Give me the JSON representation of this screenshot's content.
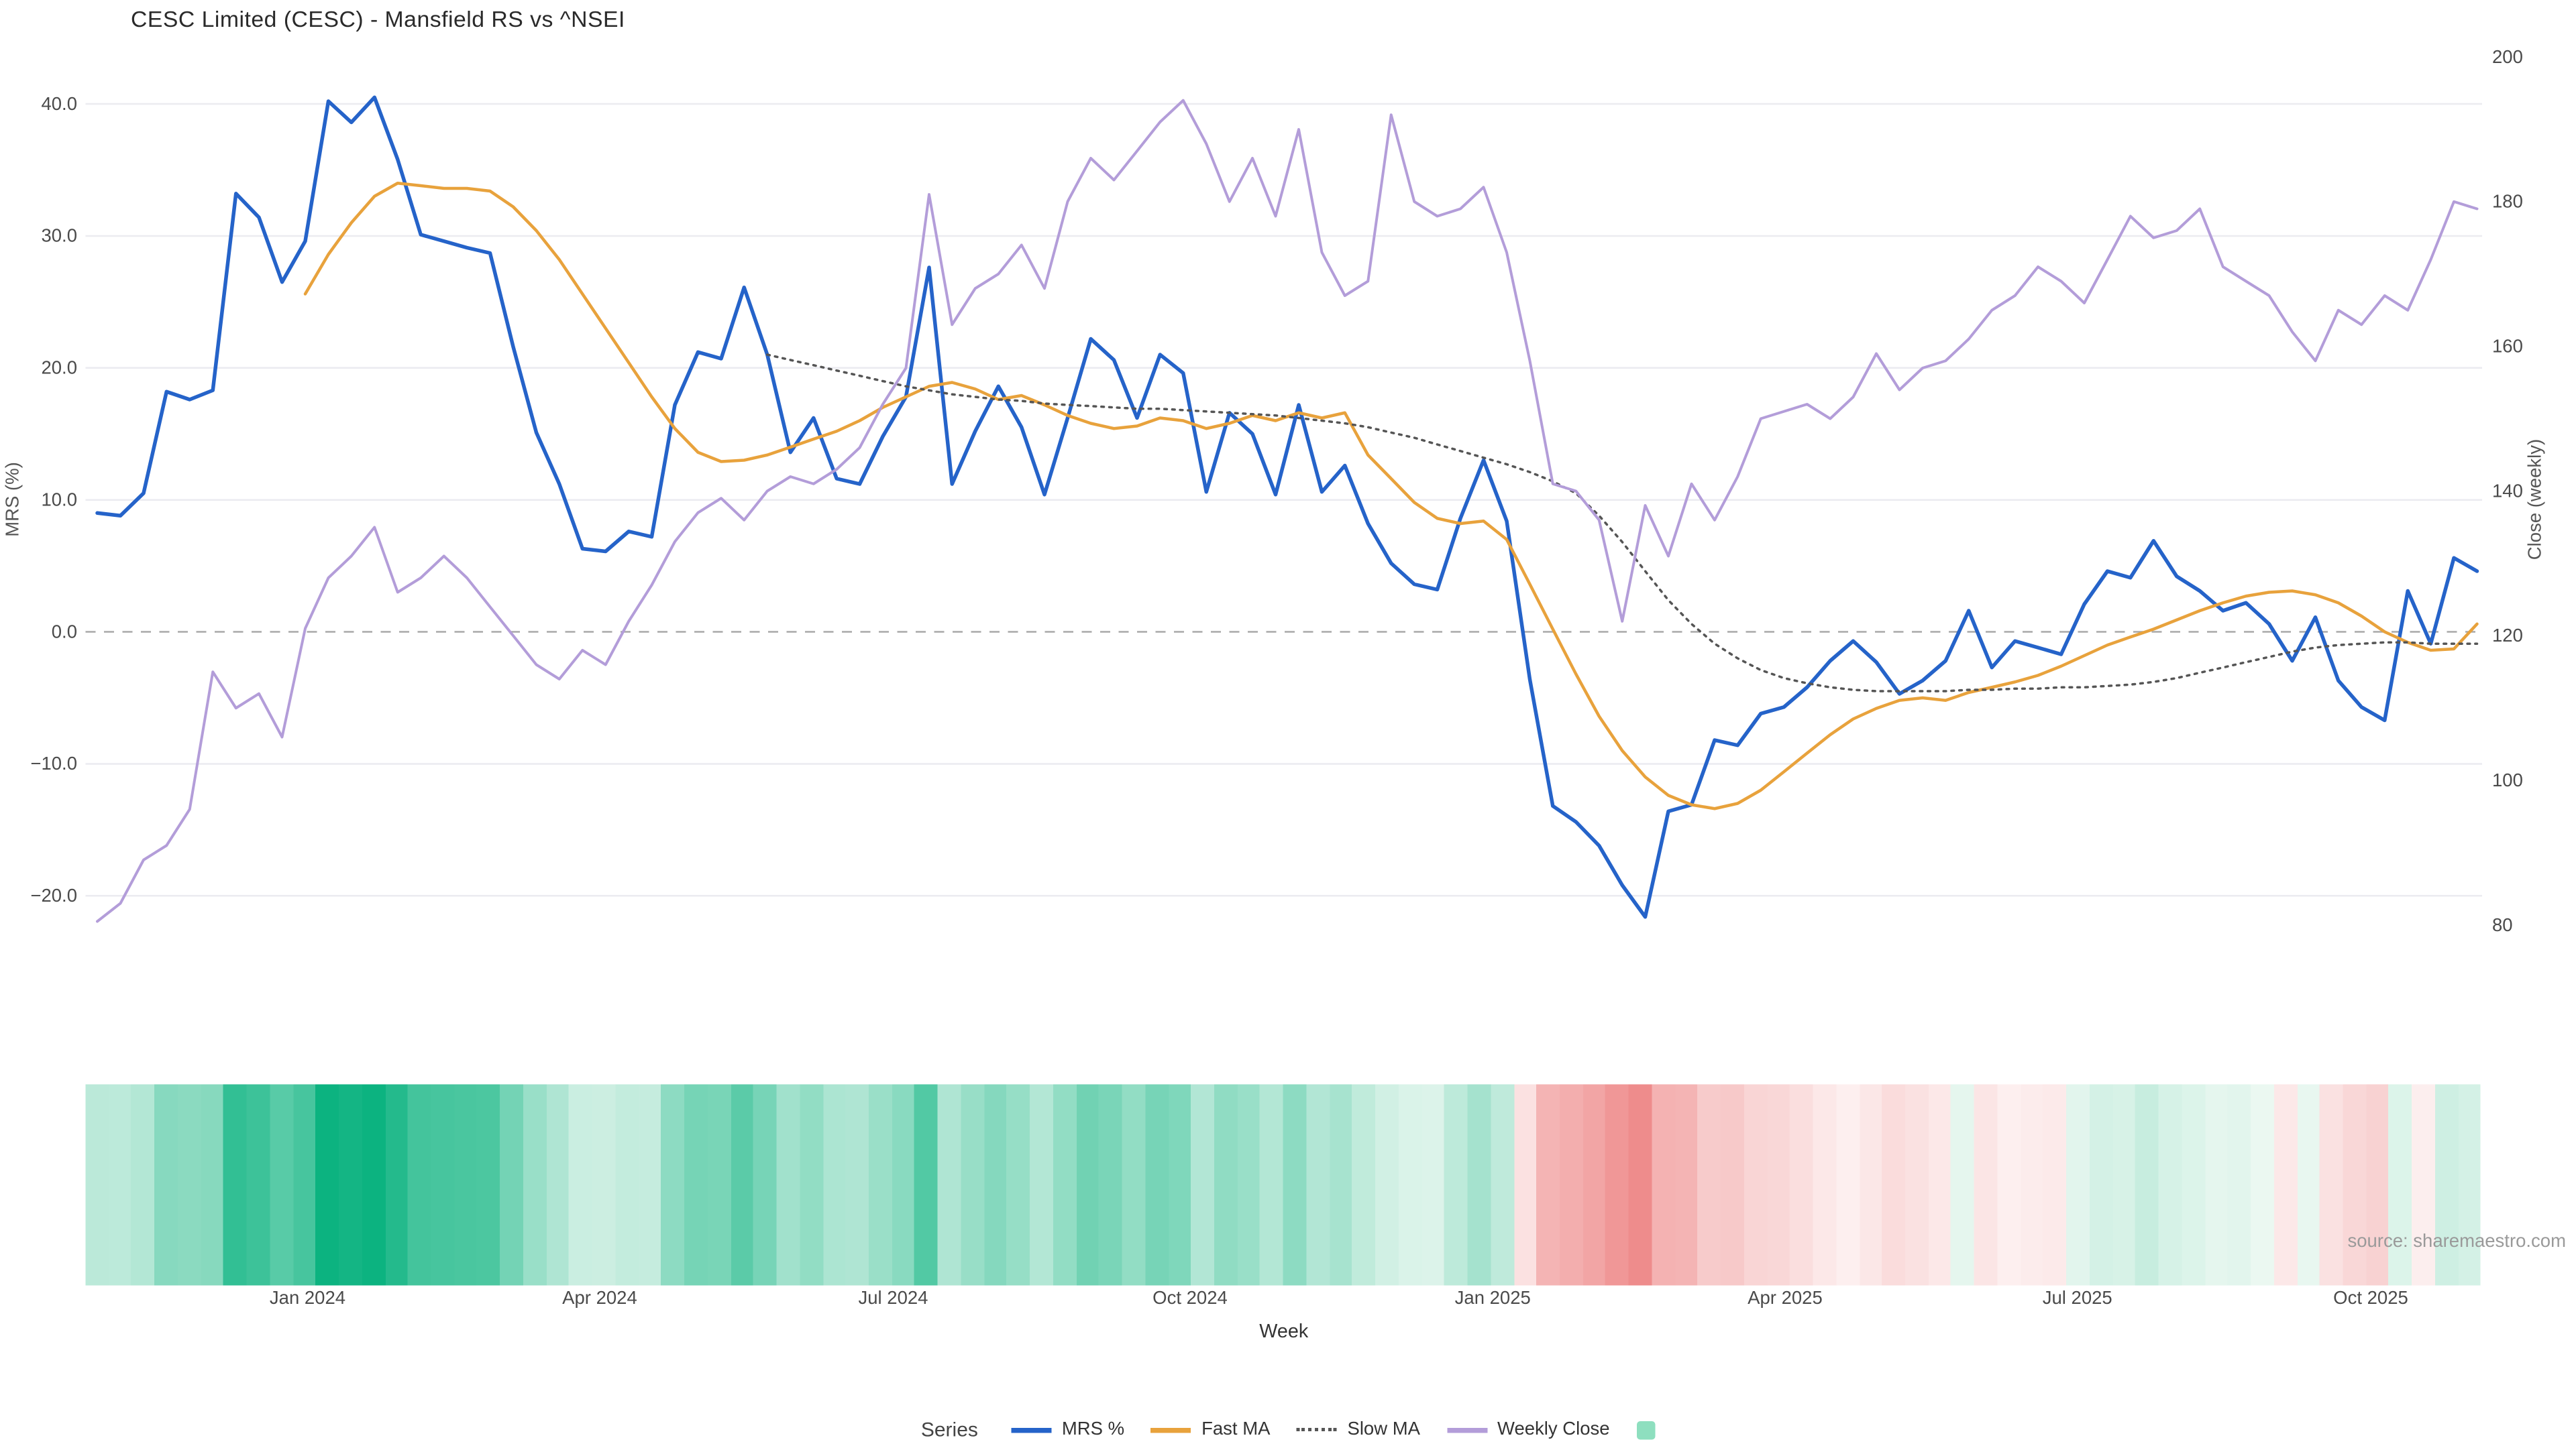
{
  "source_note": "source: sharemaestro.com",
  "legend": {
    "title": "Series",
    "items": [
      {
        "label": "MRS %",
        "swatch": "line",
        "color": "#2563c9"
      },
      {
        "label": "Fast MA",
        "swatch": "line",
        "color": "#e8a23c"
      },
      {
        "label": "Slow MA",
        "swatch": "dotted",
        "color": "#555555"
      },
      {
        "label": "Weekly Close",
        "swatch": "line",
        "color": "#b39dd9"
      },
      {
        "label": "",
        "swatch": "square",
        "color": "#8edfbf"
      }
    ]
  },
  "chart_data": {
    "type": "line",
    "title": "CESC Limited (CESC) - Mansfield RS vs ^NSEI",
    "x_axis": {
      "label": "Week",
      "ticks": [
        {
          "label": "Jan 2024",
          "pos": 9.1
        },
        {
          "label": "Apr 2024",
          "pos": 21.75
        },
        {
          "label": "Jul 2024",
          "pos": 34.45
        },
        {
          "label": "Oct 2024",
          "pos": 47.3
        },
        {
          "label": "Jan 2025",
          "pos": 60.4
        },
        {
          "label": "Apr 2025",
          "pos": 73.05
        },
        {
          "label": "Jul 2025",
          "pos": 85.7
        },
        {
          "label": "Oct 2025",
          "pos": 98.4
        }
      ]
    },
    "y_left": {
      "label": "MRS (%)",
      "ticks": [
        40,
        30,
        20,
        10,
        0,
        -10,
        -20
      ],
      "range": [
        -25.5,
        44.3
      ]
    },
    "y_right": {
      "label": "Close (weekly)",
      "ticks": [
        200,
        180,
        160,
        140,
        120,
        100,
        80
      ],
      "range": [
        76,
        201.5
      ]
    },
    "zero_line": 0,
    "series": [
      {
        "name": "MRS %",
        "axis": "left",
        "style": "solid",
        "color": "#2563c9",
        "width": 2.2,
        "values": [
          9.0,
          8.8,
          10.5,
          18.2,
          17.6,
          18.3,
          33.2,
          31.4,
          26.5,
          29.6,
          40.2,
          38.6,
          40.5,
          35.8,
          30.1,
          29.6,
          29.1,
          28.7,
          21.6,
          15.1,
          11.2,
          6.3,
          6.1,
          7.6,
          7.2,
          17.2,
          21.2,
          20.7,
          26.1,
          21.0,
          13.6,
          16.2,
          11.6,
          11.2,
          14.8,
          17.8,
          27.6,
          11.2,
          15.2,
          18.6,
          15.5,
          10.4,
          16.2,
          22.2,
          20.6,
          16.2,
          21.0,
          19.6,
          10.6,
          16.6,
          15.0,
          10.4,
          17.2,
          10.6,
          12.6,
          8.2,
          5.2,
          3.6,
          3.2,
          8.6,
          13.0,
          8.4,
          -3.6,
          -13.2,
          -14.4,
          -16.2,
          -19.2,
          -21.6,
          -13.6,
          -13.1,
          -8.2,
          -8.6,
          -6.2,
          -5.7,
          -4.2,
          -2.2,
          -0.7,
          -2.3,
          -4.7,
          -3.7,
          -2.2,
          1.6,
          -2.7,
          -0.7,
          -1.2,
          -1.7,
          2.1,
          4.6,
          4.1,
          6.9,
          4.2,
          3.1,
          1.6,
          2.2,
          0.6,
          -2.2,
          1.1,
          -3.7,
          -5.7,
          -6.7,
          3.1,
          -0.9,
          5.6,
          4.6
        ]
      },
      {
        "name": "Fast MA",
        "axis": "left",
        "style": "solid",
        "color": "#e8a23c",
        "width": 1.8,
        "values": [
          null,
          null,
          null,
          null,
          null,
          null,
          null,
          null,
          null,
          25.6,
          28.6,
          31.0,
          33.0,
          34.0,
          33.8,
          33.6,
          33.6,
          33.4,
          32.2,
          30.4,
          28.2,
          25.6,
          23.0,
          20.4,
          17.8,
          15.4,
          13.6,
          12.9,
          13.0,
          13.4,
          14.0,
          14.6,
          15.2,
          16.0,
          17.0,
          17.8,
          18.6,
          18.9,
          18.4,
          17.6,
          17.9,
          17.2,
          16.4,
          15.8,
          15.4,
          15.6,
          16.2,
          16.0,
          15.4,
          15.8,
          16.4,
          16.0,
          16.6,
          16.2,
          16.6,
          13.4,
          11.6,
          9.8,
          8.6,
          8.2,
          8.4,
          7.0,
          3.6,
          0.2,
          -3.2,
          -6.4,
          -9.0,
          -11.0,
          -12.4,
          -13.1,
          -13.4,
          -13.0,
          -12.0,
          -10.6,
          -9.2,
          -7.8,
          -6.6,
          -5.8,
          -5.2,
          -5.0,
          -5.2,
          -4.6,
          -4.2,
          -3.8,
          -3.3,
          -2.6,
          -1.8,
          -1.0,
          -0.4,
          0.2,
          0.9,
          1.6,
          2.2,
          2.7,
          3.0,
          3.1,
          2.8,
          2.2,
          1.2,
          0.0,
          -0.8,
          -1.4,
          -1.3,
          0.6
        ]
      },
      {
        "name": "Slow MA",
        "axis": "left",
        "style": "dotted",
        "color": "#555555",
        "width": 1.4,
        "values": [
          null,
          null,
          null,
          null,
          null,
          null,
          null,
          null,
          null,
          null,
          null,
          null,
          null,
          null,
          null,
          null,
          null,
          null,
          null,
          null,
          null,
          null,
          null,
          null,
          null,
          null,
          null,
          null,
          null,
          21.0,
          20.6,
          20.2,
          19.8,
          19.4,
          19.0,
          18.6,
          18.3,
          18.0,
          17.8,
          17.6,
          17.5,
          17.3,
          17.2,
          17.1,
          17.0,
          16.9,
          16.9,
          16.8,
          16.7,
          16.6,
          16.5,
          16.4,
          16.2,
          16.0,
          15.8,
          15.5,
          15.1,
          14.7,
          14.2,
          13.7,
          13.2,
          12.7,
          12.1,
          11.4,
          10.5,
          8.8,
          6.8,
          4.6,
          2.4,
          0.6,
          -0.9,
          -2.0,
          -2.9,
          -3.5,
          -3.9,
          -4.2,
          -4.4,
          -4.5,
          -4.5,
          -4.5,
          -4.5,
          -4.4,
          -4.4,
          -4.3,
          -4.3,
          -4.2,
          -4.2,
          -4.1,
          -4.0,
          -3.8,
          -3.5,
          -3.1,
          -2.7,
          -2.3,
          -1.9,
          -1.5,
          -1.2,
          -1.0,
          -0.9,
          -0.8,
          -0.8,
          -0.9,
          -0.9,
          -0.9
        ]
      },
      {
        "name": "Weekly Close",
        "axis": "right",
        "style": "solid",
        "color": "#b39dd9",
        "width": 1.6,
        "values": [
          80.5,
          83,
          89,
          91,
          96,
          115,
          110,
          112,
          106,
          121,
          128,
          131,
          135,
          126,
          128,
          131,
          128,
          124,
          120,
          116,
          114,
          118,
          116,
          122,
          127,
          133,
          137,
          139,
          136,
          140,
          142,
          141,
          143,
          146,
          152,
          157,
          181,
          163,
          168,
          170,
          174,
          168,
          180,
          186,
          183,
          187,
          191,
          194,
          188,
          180,
          186,
          178,
          190,
          173,
          167,
          169,
          192,
          180,
          178,
          179,
          182,
          173,
          158,
          141,
          140,
          136,
          122,
          138,
          131,
          141,
          136,
          142,
          150,
          151,
          152,
          150,
          153,
          159,
          154,
          157,
          158,
          161,
          165,
          167,
          171,
          169,
          166,
          172,
          178,
          175,
          176,
          179,
          171,
          169,
          167,
          162,
          158,
          165,
          163,
          167,
          165,
          172,
          180,
          179
        ]
      }
    ],
    "heatmap": {
      "source_series": "MRS %",
      "max_pos_color": "#0cb380",
      "zero_pos_color": "#eef9f3",
      "max_neg_color": "#ee8a8a",
      "zero_neg_color": "#fdf2f2",
      "pos_scale_max": 40,
      "neg_scale_max": 22
    }
  }
}
